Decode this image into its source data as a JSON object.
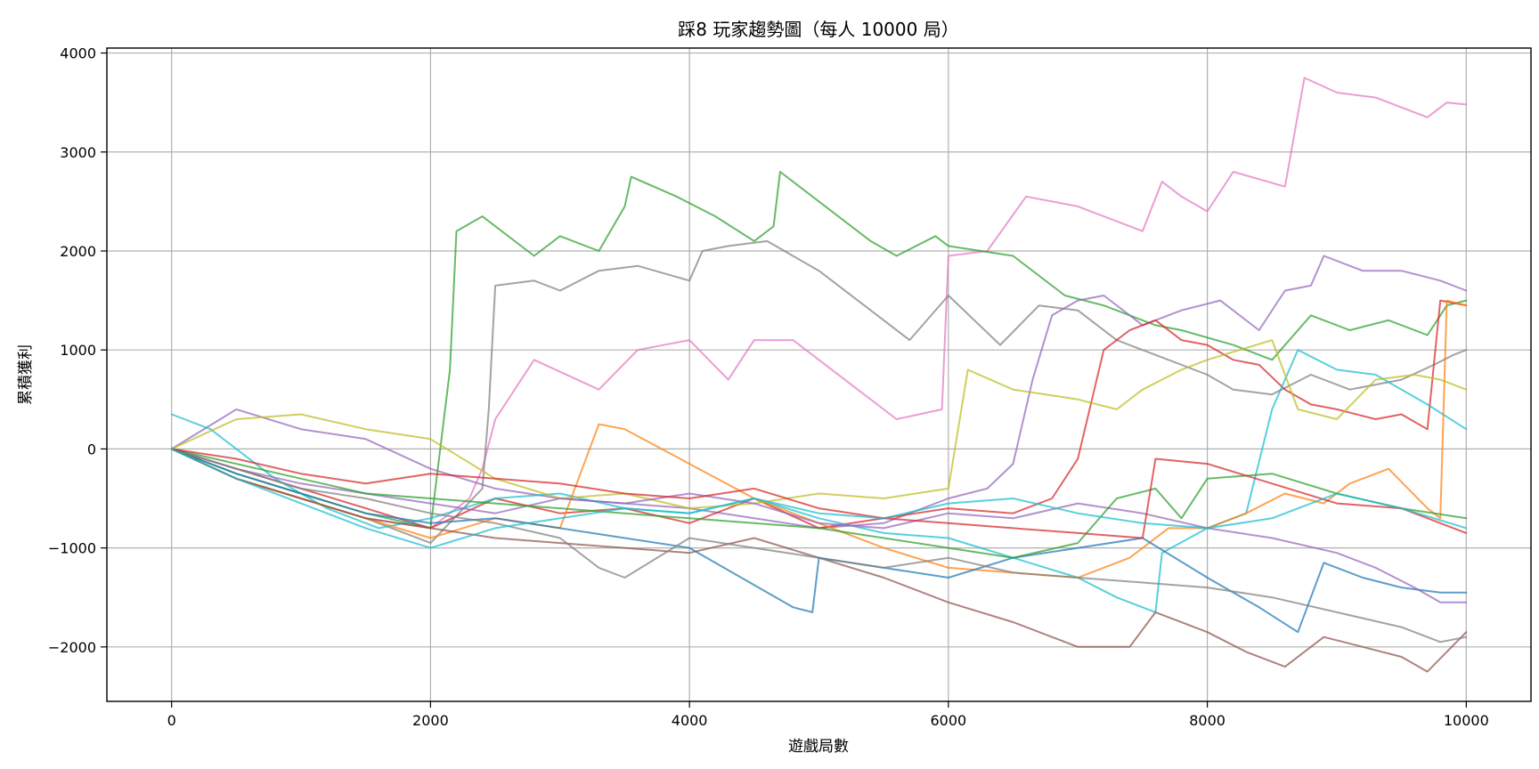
{
  "chart_data": {
    "type": "line",
    "title": "踩8 玩家趨勢圖（每人 10000 局）",
    "xlabel": "遊戲局數",
    "ylabel": "累積獲利",
    "xlim": [
      -500,
      10500
    ],
    "ylim": [
      -2550,
      4050
    ],
    "xticks": [
      0,
      2000,
      4000,
      6000,
      8000,
      10000
    ],
    "xtick_labels": [
      "0",
      "2000",
      "4000",
      "6000",
      "8000",
      "10000"
    ],
    "yticks": [
      -2000,
      -1000,
      0,
      1000,
      2000,
      3000,
      4000
    ],
    "ytick_labels": [
      "−2000",
      "−1000",
      "0",
      "1000",
      "2000",
      "3000",
      "4000"
    ],
    "grid": true,
    "legend": "none",
    "colors": [
      "#1f77b4",
      "#ff7f0e",
      "#2ca02c",
      "#d62728",
      "#9467bd",
      "#8c564b",
      "#e377c2",
      "#7f7f7f",
      "#bcbd22",
      "#17becf"
    ],
    "series": [
      {
        "color": "#e377c2",
        "x": [
          0,
          500,
          1000,
          1500,
          2000,
          2300,
          2400,
          2500,
          2800,
          3300,
          3600,
          4000,
          4300,
          4500,
          4800,
          5300,
          5600,
          5950,
          6000,
          6300,
          6600,
          7000,
          7500,
          7650,
          7800,
          8000,
          8200,
          8600,
          8750,
          9000,
          9300,
          9500,
          9700,
          9850,
          10000
        ],
        "values": [
          0,
          -300,
          -500,
          -700,
          -800,
          -500,
          -200,
          300,
          900,
          600,
          1000,
          1100,
          700,
          1100,
          1100,
          600,
          300,
          400,
          1950,
          2000,
          2550,
          2450,
          2200,
          2700,
          2550,
          2400,
          2800,
          2650,
          3750,
          3600,
          3550,
          3450,
          3350,
          3500,
          3480
        ]
      },
      {
        "color": "#2ca02c",
        "x": [
          0,
          500,
          1000,
          1500,
          2000,
          2150,
          2200,
          2400,
          2800,
          3000,
          3300,
          3500,
          3550,
          3900,
          4200,
          4500,
          4650,
          4700,
          5000,
          5400,
          5600,
          5900,
          6000,
          6500,
          6900,
          7200,
          7600,
          7800,
          8200,
          8500,
          8800,
          9100,
          9400,
          9700,
          9850,
          10000
        ],
        "values": [
          0,
          -250,
          -450,
          -650,
          -800,
          800,
          2200,
          2350,
          1950,
          2150,
          2000,
          2450,
          2750,
          2550,
          2350,
          2100,
          2250,
          2800,
          2500,
          2100,
          1950,
          2150,
          2050,
          1950,
          1550,
          1450,
          1250,
          1200,
          1050,
          900,
          1350,
          1200,
          1300,
          1150,
          1450,
          1500
        ]
      },
      {
        "color": "#7f7f7f",
        "x": [
          0,
          500,
          1000,
          1500,
          2000,
          2400,
          2450,
          2500,
          2800,
          3000,
          3300,
          3600,
          4000,
          4100,
          4300,
          4600,
          5000,
          5500,
          5700,
          6000,
          6400,
          6700,
          7000,
          7300,
          7700,
          8000,
          8200,
          8500,
          8800,
          9100,
          9500,
          9750,
          9900,
          10000
        ],
        "values": [
          0,
          -300,
          -500,
          -700,
          -950,
          -400,
          400,
          1650,
          1700,
          1600,
          1800,
          1850,
          1700,
          2000,
          2050,
          2100,
          1800,
          1300,
          1100,
          1550,
          1050,
          1450,
          1400,
          1100,
          900,
          750,
          600,
          550,
          750,
          600,
          700,
          850,
          950,
          1000
        ]
      },
      {
        "color": "#9467bd",
        "x": [
          0,
          500,
          1000,
          1500,
          2000,
          2500,
          3000,
          3500,
          4000,
          4500,
          5000,
          5500,
          6000,
          6300,
          6500,
          6650,
          6800,
          7000,
          7200,
          7500,
          7800,
          8100,
          8400,
          8600,
          8800,
          8900,
          9200,
          9500,
          9800,
          10000
        ],
        "values": [
          0,
          400,
          200,
          100,
          -200,
          -400,
          -500,
          -550,
          -600,
          -700,
          -800,
          -750,
          -500,
          -400,
          -150,
          700,
          1350,
          1500,
          1550,
          1250,
          1400,
          1500,
          1200,
          1600,
          1650,
          1950,
          1800,
          1800,
          1700,
          1600
        ]
      },
      {
        "color": "#d62728",
        "x": [
          0,
          500,
          1000,
          1500,
          2000,
          2500,
          3000,
          3500,
          4000,
          4500,
          5000,
          5500,
          6000,
          6500,
          6800,
          7000,
          7200,
          7400,
          7600,
          7800,
          8000,
          8200,
          8400,
          8600,
          8800,
          9000,
          9300,
          9500,
          9700,
          9800,
          10000
        ],
        "values": [
          0,
          -200,
          -400,
          -600,
          -800,
          -500,
          -650,
          -600,
          -750,
          -500,
          -800,
          -700,
          -600,
          -650,
          -500,
          -100,
          1000,
          1200,
          1300,
          1100,
          1050,
          900,
          850,
          600,
          450,
          400,
          300,
          350,
          200,
          1500,
          1450
        ]
      },
      {
        "color": "#17becf",
        "x": [
          0,
          300,
          800,
          1200,
          1600,
          2000,
          2500,
          3000,
          3500,
          4000,
          4500,
          5000,
          5500,
          6000,
          6500,
          7000,
          7300,
          7600,
          7650,
          8000,
          8300,
          8500,
          8700,
          9000,
          9300,
          9500,
          9700,
          10000
        ],
        "values": [
          350,
          200,
          -300,
          -600,
          -800,
          -700,
          -500,
          -450,
          -600,
          -650,
          -500,
          -700,
          -850,
          -900,
          -1100,
          -1300,
          -1500,
          -1650,
          -1050,
          -800,
          -650,
          400,
          1000,
          800,
          750,
          600,
          450,
          200
        ]
      },
      {
        "color": "#ff7f0e",
        "x": [
          0,
          500,
          1000,
          1500,
          2000,
          2500,
          3000,
          3300,
          3500,
          4000,
          4500,
          5000,
          5500,
          6000,
          6500,
          7000,
          7400,
          7700,
          8000,
          8300,
          8600,
          8900,
          9100,
          9400,
          9700,
          9800,
          9850,
          10000
        ],
        "values": [
          0,
          -300,
          -500,
          -700,
          -900,
          -700,
          -800,
          250,
          200,
          -150,
          -500,
          -750,
          -1000,
          -1200,
          -1250,
          -1300,
          -1100,
          -800,
          -800,
          -650,
          -450,
          -550,
          -350,
          -200,
          -600,
          -700,
          1500,
          1450
        ]
      },
      {
        "color": "#bcbd22",
        "x": [
          0,
          500,
          1000,
          1500,
          2000,
          2500,
          3000,
          3500,
          4000,
          4500,
          5000,
          5500,
          6000,
          6150,
          6500,
          7000,
          7300,
          7500,
          7800,
          8000,
          8500,
          8700,
          9000,
          9300,
          9600,
          9800,
          10000
        ],
        "values": [
          0,
          300,
          350,
          200,
          100,
          -300,
          -500,
          -450,
          -600,
          -550,
          -450,
          -500,
          -400,
          800,
          600,
          500,
          400,
          600,
          800,
          900,
          1100,
          400,
          300,
          700,
          750,
          700,
          600
        ]
      },
      {
        "color": "#8c564b",
        "x": [
          0,
          500,
          1000,
          1500,
          2000,
          2500,
          3000,
          3500,
          4000,
          4500,
          5000,
          5500,
          6000,
          6500,
          7000,
          7400,
          7600,
          8000,
          8300,
          8600,
          8900,
          9200,
          9500,
          9700,
          10000
        ],
        "values": [
          0,
          -300,
          -500,
          -700,
          -800,
          -900,
          -950,
          -1000,
          -1050,
          -900,
          -1100,
          -1300,
          -1550,
          -1750,
          -2000,
          -2000,
          -1650,
          -1850,
          -2050,
          -2200,
          -1900,
          -2000,
          -2100,
          -2250,
          -1850
        ]
      },
      {
        "color": "#1f77b4",
        "x": [
          0,
          500,
          1000,
          1500,
          2000,
          2500,
          3000,
          3500,
          4000,
          4400,
          4800,
          4950,
          5000,
          5500,
          6000,
          6500,
          7000,
          7500,
          8000,
          8400,
          8700,
          8900,
          9200,
          9500,
          9800,
          10000
        ],
        "values": [
          0,
          -250,
          -450,
          -650,
          -750,
          -700,
          -800,
          -900,
          -1000,
          -1300,
          -1600,
          -1650,
          -1100,
          -1200,
          -1300,
          -1100,
          -1000,
          -900,
          -1300,
          -1600,
          -1850,
          -1150,
          -1300,
          -1400,
          -1450,
          -1450
        ]
      },
      {
        "color": "#9467bd",
        "x": [
          0,
          500,
          1000,
          1500,
          2000,
          2500,
          3000,
          3500,
          4000,
          4500,
          5000,
          5500,
          6000,
          6500,
          7000,
          7500,
          8000,
          8500,
          9000,
          9300,
          9600,
          9800,
          10000
        ],
        "values": [
          0,
          -200,
          -350,
          -450,
          -550,
          -650,
          -500,
          -550,
          -450,
          -550,
          -750,
          -800,
          -650,
          -700,
          -550,
          -650,
          -800,
          -900,
          -1050,
          -1200,
          -1400,
          -1550,
          -1550
        ]
      },
      {
        "color": "#7f7f7f",
        "x": [
          0,
          500,
          1000,
          1500,
          2000,
          2500,
          3000,
          3300,
          3500,
          4000,
          4500,
          5000,
          5500,
          6000,
          6500,
          7000,
          7500,
          8000,
          8500,
          9000,
          9500,
          9800,
          10000
        ],
        "values": [
          0,
          -200,
          -400,
          -500,
          -650,
          -750,
          -900,
          -1200,
          -1300,
          -900,
          -1000,
          -1100,
          -1200,
          -1100,
          -1250,
          -1300,
          -1350,
          -1400,
          -1500,
          -1650,
          -1800,
          -1950,
          -1900
        ]
      },
      {
        "color": "#2ca02c",
        "x": [
          0,
          500,
          1000,
          1500,
          2000,
          2500,
          3000,
          3500,
          4000,
          4500,
          5000,
          5500,
          6000,
          6500,
          7000,
          7300,
          7600,
          7800,
          8000,
          8500,
          9000,
          9500,
          10000
        ],
        "values": [
          0,
          -150,
          -300,
          -450,
          -500,
          -550,
          -600,
          -650,
          -700,
          -750,
          -800,
          -900,
          -1000,
          -1100,
          -950,
          -500,
          -400,
          -700,
          -300,
          -250,
          -450,
          -600,
          -700
        ]
      },
      {
        "color": "#d62728",
        "x": [
          0,
          500,
          1000,
          1500,
          2000,
          2500,
          3000,
          3500,
          4000,
          4500,
          5000,
          5500,
          6000,
          6500,
          7000,
          7500,
          7600,
          8000,
          8500,
          9000,
          9500,
          10000
        ],
        "values": [
          0,
          -100,
          -250,
          -350,
          -250,
          -300,
          -350,
          -450,
          -500,
          -400,
          -600,
          -700,
          -750,
          -800,
          -850,
          -900,
          -100,
          -150,
          -350,
          -550,
          -600,
          -850
        ]
      },
      {
        "color": "#17becf",
        "x": [
          0,
          500,
          1000,
          1500,
          2000,
          2500,
          3000,
          3500,
          4000,
          4500,
          5000,
          5500,
          6000,
          6500,
          7000,
          7500,
          8000,
          8500,
          9000,
          9500,
          10000
        ],
        "values": [
          0,
          -300,
          -550,
          -800,
          -1000,
          -800,
          -700,
          -600,
          -650,
          -500,
          -650,
          -700,
          -550,
          -500,
          -650,
          -750,
          -800,
          -700,
          -450,
          -600,
          -800
        ]
      }
    ]
  }
}
